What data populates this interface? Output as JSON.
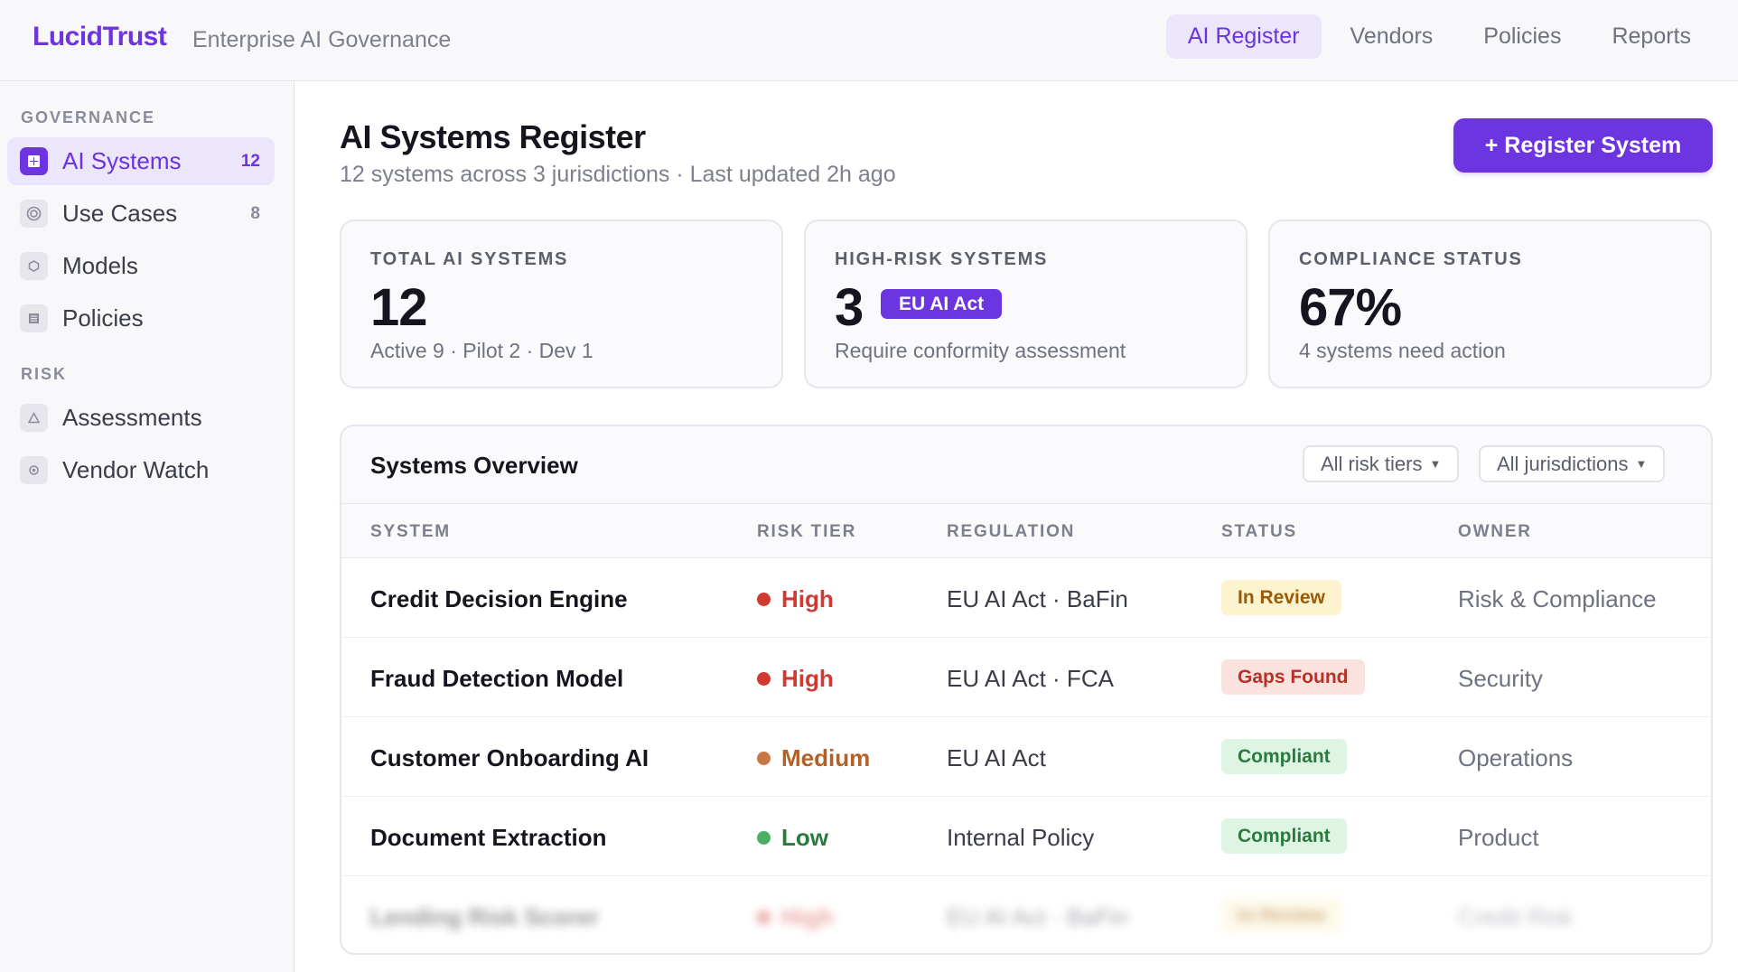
{
  "app": {
    "brand": "LucidTrust",
    "tagline": "Enterprise AI Governance"
  },
  "topnav": [
    {
      "label": "AI Register",
      "active": true
    },
    {
      "label": "Vendors",
      "active": false
    },
    {
      "label": "Policies",
      "active": false
    },
    {
      "label": "Reports",
      "active": false
    }
  ],
  "sidebar": {
    "governance_heading": "GOVERNANCE",
    "risk_heading": "RISK",
    "items": [
      {
        "label": "AI Systems",
        "count": "12",
        "icon": "grid-icon",
        "active": true
      },
      {
        "label": "Use Cases",
        "count": "8",
        "icon": "target-icon",
        "active": false
      },
      {
        "label": "Models",
        "count": "",
        "icon": "hexagon-icon",
        "active": false
      },
      {
        "label": "Policies",
        "count": "",
        "icon": "document-icon",
        "active": false
      },
      {
        "label": "Assessments",
        "count": "",
        "icon": "triangle-icon",
        "active": false
      },
      {
        "label": "Vendor Watch",
        "count": "",
        "icon": "eye-icon",
        "active": false
      }
    ]
  },
  "page": {
    "title": "AI Systems Register",
    "subtitle": "12 systems across 3 jurisdictions · Last updated 2h ago",
    "primary_action": "+ Register System"
  },
  "stats": [
    {
      "label": "TOTAL AI SYSTEMS",
      "value": "12",
      "foot": "Active 9 · Pilot 2 · Dev 1",
      "badge": ""
    },
    {
      "label": "HIGH-RISK SYSTEMS",
      "value": "3",
      "foot": "Require conformity assessment",
      "badge": "EU AI Act"
    },
    {
      "label": "COMPLIANCE STATUS",
      "value": "67%",
      "foot": "4 systems need action",
      "badge": ""
    }
  ],
  "table": {
    "title": "Systems Overview",
    "filters": [
      "All risk tiers",
      "All jurisdictions"
    ],
    "columns": [
      "SYSTEM",
      "RISK TIER",
      "REGULATION",
      "STATUS",
      "OWNER"
    ],
    "rows": [
      {
        "system": "Credit Decision Engine",
        "risk": "High",
        "regulation": "EU AI Act · BaFin",
        "status": "In Review",
        "owner": "Risk & Compliance"
      },
      {
        "system": "Fraud Detection Model",
        "risk": "High",
        "regulation": "EU AI Act · FCA",
        "status": "Gaps Found",
        "owner": "Security"
      },
      {
        "system": "Customer Onboarding AI",
        "risk": "Medium",
        "regulation": "EU AI Act",
        "status": "Compliant",
        "owner": "Operations"
      },
      {
        "system": "Document Extraction",
        "risk": "Low",
        "regulation": "Internal Policy",
        "status": "Compliant",
        "owner": "Product"
      },
      {
        "system": "Lending Risk Scorer",
        "risk": "High",
        "regulation": "EU AI Act · BaFin",
        "status": "In Review",
        "owner": "Credit Risk"
      }
    ]
  },
  "colors": {
    "accent": "#6d35e0",
    "risk_high": "#d03a32",
    "risk_medium": "#c97744",
    "risk_low": "#4caf62",
    "status_review_bg": "#fdf3cf",
    "status_review_fg": "#9a5a08",
    "status_gaps_bg": "#fbe2df",
    "status_gaps_fg": "#b53228",
    "status_ok_bg": "#dff5e4",
    "status_ok_fg": "#2b7a3e"
  }
}
